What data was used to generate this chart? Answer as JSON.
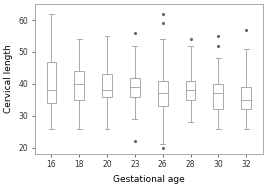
{
  "gestational_ages": [
    16,
    18,
    20,
    23,
    26,
    28,
    30,
    32
  ],
  "boxes": [
    {
      "q1": 34,
      "median": 38,
      "q3": 47,
      "whislo": 26,
      "whishi": 62,
      "fliers": []
    },
    {
      "q1": 35,
      "median": 40,
      "q3": 44,
      "whislo": 26,
      "whishi": 54,
      "fliers": []
    },
    {
      "q1": 36,
      "median": 38,
      "q3": 43,
      "whislo": 26,
      "whishi": 55,
      "fliers": []
    },
    {
      "q1": 36,
      "median": 39,
      "q3": 42,
      "whislo": 29,
      "whishi": 52,
      "fliers": [
        22,
        56
      ]
    },
    {
      "q1": 33,
      "median": 37,
      "q3": 41,
      "whislo": 21,
      "whishi": 54,
      "fliers": [
        20,
        59,
        62
      ]
    },
    {
      "q1": 35,
      "median": 38,
      "q3": 41,
      "whislo": 28,
      "whishi": 52,
      "fliers": [
        54
      ]
    },
    {
      "q1": 32,
      "median": 37,
      "q3": 40,
      "whislo": 26,
      "whishi": 48,
      "fliers": [
        52,
        55
      ]
    },
    {
      "q1": 32,
      "median": 35,
      "q3": 39,
      "whislo": 26,
      "whishi": 51,
      "fliers": [
        57
      ]
    }
  ],
  "ylim": [
    18,
    65
  ],
  "yticks": [
    20,
    30,
    40,
    50,
    60
  ],
  "xlabel": "Gestational age",
  "ylabel": "Cervical length",
  "box_color": "white",
  "line_color": "#aaaaaa",
  "flier_color": "#666666",
  "background_color": "white",
  "box_width": 0.35,
  "linewidth": 0.7,
  "fontsize_tick": 5.5,
  "fontsize_label": 6.5
}
